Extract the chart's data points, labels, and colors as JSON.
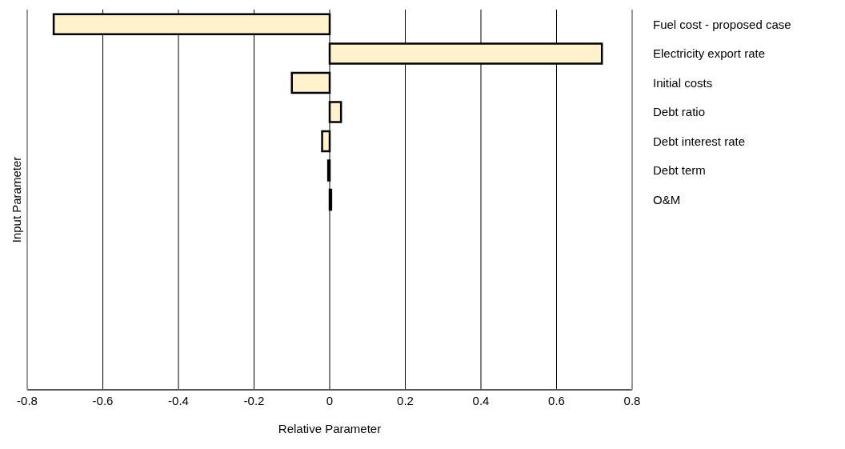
{
  "chart_data": {
    "type": "bar",
    "orientation": "horizontal",
    "xlabel": "Relative Parameter",
    "ylabel": "Input Parameter",
    "categories": [
      "Fuel cost - proposed case",
      "Electricity export rate",
      "Initial costs",
      "Debt ratio",
      "Debt interest rate",
      "Debt term",
      "O&M",
      null,
      null,
      null,
      null,
      null,
      null
    ],
    "values": [
      -0.73,
      0.72,
      -0.1,
      0.03,
      -0.02,
      -0.004,
      0.004,
      null,
      null,
      null,
      null,
      null,
      null
    ],
    "color": "#fff2cc",
    "xlim": [
      -0.8,
      0.8
    ],
    "xticks": [
      -0.8,
      -0.6,
      -0.4,
      -0.2,
      0,
      0.2,
      0.4,
      0.6,
      0.8
    ],
    "grid": "x"
  }
}
